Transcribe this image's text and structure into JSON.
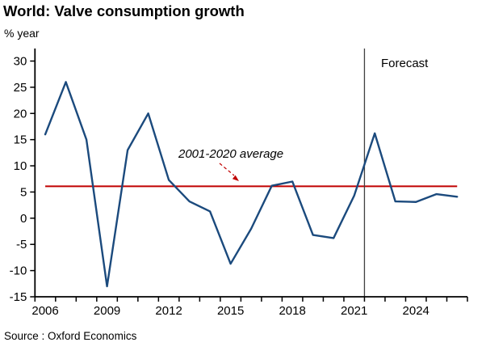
{
  "page": {
    "title": "World: Valve consumption growth",
    "unit_label": "% year",
    "forecast_label": "Forecast",
    "source": "Source : Oxford Economics"
  },
  "colors": {
    "series": "#1B4A7D",
    "average": "#C00000",
    "axis": "#000000",
    "divider": "#404040"
  },
  "chart_data": {
    "type": "line",
    "title": "World: Valve consumption growth",
    "ylabel": "% year",
    "x": [
      2006,
      2007,
      2008,
      2009,
      2010,
      2011,
      2012,
      2013,
      2014,
      2015,
      2016,
      2017,
      2018,
      2019,
      2020,
      2021,
      2022,
      2023,
      2024,
      2025,
      2026
    ],
    "series": [
      {
        "name": "World valve consumption growth (% year)",
        "values": [
          16,
          26,
          15,
          -13,
          13,
          20,
          7.3,
          3.2,
          1.3,
          -8.7,
          -2,
          6.2,
          7,
          -3.2,
          -3.8,
          4.3,
          16.2,
          3.2,
          3.1,
          4.6,
          4.1
        ]
      }
    ],
    "average_line": {
      "label": "2001-2020 average",
      "value": 6.1,
      "span_x": [
        2006,
        2026
      ]
    },
    "forecast_start_year": 2022,
    "forecast_label": "Forecast",
    "ylim": [
      -15,
      30
    ],
    "ytick_step": 5,
    "yticks": [
      -15,
      -10,
      -5,
      0,
      5,
      10,
      15,
      20,
      25,
      30
    ],
    "xticks_labeled": [
      2006,
      2009,
      2012,
      2015,
      2018,
      2021,
      2024
    ],
    "grid": false,
    "legend": "none",
    "annotations": [
      "2001-2020 average",
      "Forecast"
    ]
  }
}
